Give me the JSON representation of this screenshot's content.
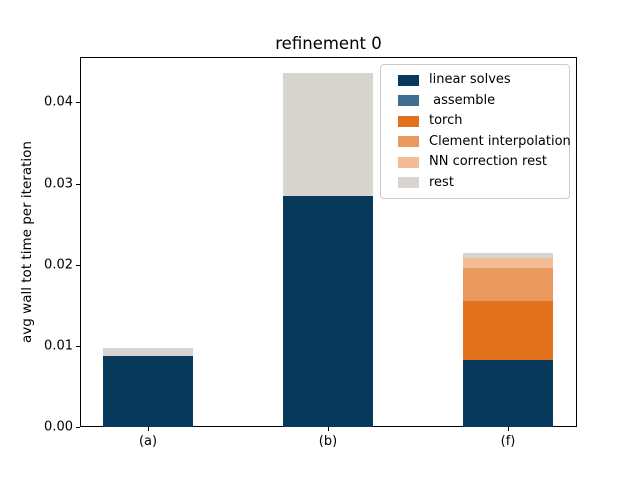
{
  "figure": {
    "background": "#ffffff",
    "text_color": "#000000"
  },
  "chart_data": {
    "type": "bar",
    "stacked": true,
    "title": "refinement 0",
    "xlabel": "",
    "ylabel": "avg wall tot time per iteration",
    "categories": [
      "(a)",
      "(b)",
      "(f)"
    ],
    "series": [
      {
        "name": "linear solves",
        "color": "#07395c",
        "values": [
          0.0087,
          0.0285,
          0.0082
        ]
      },
      {
        "name": " assemble",
        "color": "#3e6d8e",
        "values": [
          0.0,
          0.0,
          0.0
        ]
      },
      {
        "name": "torch",
        "color": "#e2711d",
        "values": [
          0.0,
          0.0,
          0.0073
        ]
      },
      {
        "name": "Clement interpolation",
        "color": "#ea9a5e",
        "values": [
          0.0,
          0.0,
          0.0041
        ]
      },
      {
        "name": "NN correction rest",
        "color": "#f3bc94",
        "values": [
          0.0,
          0.0,
          0.0012
        ]
      },
      {
        "name": "rest",
        "color": "#d8d4cf",
        "values": [
          0.001,
          0.0151,
          0.0007
        ]
      }
    ],
    "yticks": [
      {
        "value": 0.0,
        "label": "0.00"
      },
      {
        "value": 0.01,
        "label": "0.01"
      },
      {
        "value": 0.02,
        "label": "0.02"
      },
      {
        "value": 0.03,
        "label": "0.03"
      },
      {
        "value": 0.04,
        "label": "0.04"
      }
    ],
    "ylim": [
      0,
      0.0456
    ],
    "grid": false,
    "legend_position": "upper right"
  }
}
